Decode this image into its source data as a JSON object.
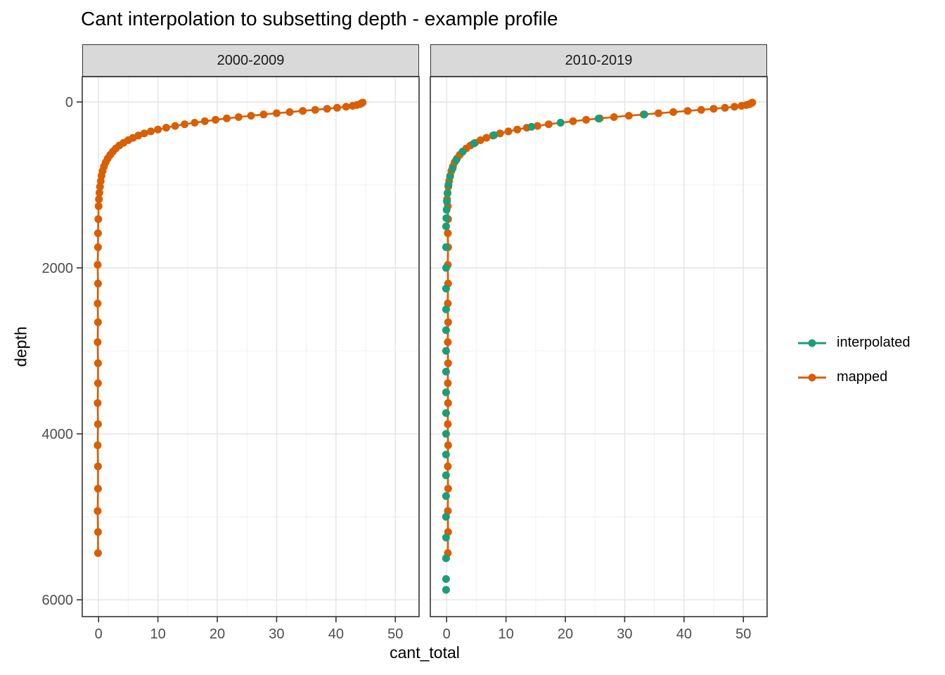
{
  "title": "Cant interpolation to subsetting depth - example profile",
  "axes": {
    "x_label": "cant_total",
    "y_label": "depth",
    "x_ticks": [
      0,
      10,
      20,
      30,
      40,
      50
    ],
    "x_minor_ticks": [
      5,
      15,
      25,
      35,
      45,
      55
    ],
    "y_ticks": [
      0,
      2000,
      4000,
      6000
    ],
    "y_minor_ticks": [
      1000,
      3000,
      5000
    ],
    "x_domain": [
      -2.75,
      54.0
    ],
    "y_domain": [
      -305,
      6203
    ],
    "y_reversed": true
  },
  "facets": [
    {
      "label": "2000-2009"
    },
    {
      "label": "2010-2019"
    }
  ],
  "legend": {
    "items": [
      {
        "label": "interpolated",
        "color": "#1B9E77"
      },
      {
        "label": "mapped",
        "color": "#D95F02"
      }
    ]
  },
  "colors": {
    "mapped": "#D95F02",
    "interpolated": "#1B9E77",
    "strip_fill": "#D9D9D9",
    "panel_border": "#333333",
    "grid_major": "#E4E4E4",
    "grid_minor": "#F1F1F1",
    "tick_label": "#4D4D4D"
  },
  "chart_data": [
    {
      "type": "line",
      "facet": "2000-2009",
      "xlabel": "cant_total",
      "ylabel": "depth",
      "xlim": [
        -2.75,
        54.0
      ],
      "ylim": [
        6203,
        -305
      ],
      "series": [
        {
          "name": "mapped",
          "color": "#D95F02",
          "draw_line": true,
          "x": [
            44.5,
            44.3,
            44.0,
            43.5,
            42.8,
            41.7,
            40.2,
            38.5,
            36.5,
            34.4,
            32.2,
            30.0,
            27.8,
            25.7,
            23.6,
            21.6,
            19.7,
            17.9,
            16.2,
            14.5,
            12.9,
            11.4,
            10.0,
            8.8,
            7.7,
            6.7,
            5.8,
            5.0,
            4.2,
            3.5,
            2.9,
            2.4,
            1.95,
            1.55,
            1.2,
            0.9,
            0.68,
            0.5,
            0.36,
            0.24,
            0.14,
            0.06,
            0.0,
            -0.05,
            -0.1,
            -0.1,
            -0.15,
            -0.1,
            -0.15,
            -0.1,
            -0.15,
            -0.1,
            -0.1,
            -0.15,
            -0.1,
            -0.15,
            -0.1,
            -0.1,
            -0.15,
            -0.1,
            -0.1
          ],
          "y": [
            8,
            17,
            27,
            37,
            47,
            58,
            70,
            82,
            95,
            108,
            122,
            136,
            151,
            166,
            182,
            198,
            215,
            232,
            250,
            269,
            289,
            310,
            332,
            355,
            379,
            405,
            432,
            461,
            492,
            525,
            560,
            598,
            638,
            681,
            728,
            778,
            832,
            890,
            953,
            1021,
            1094,
            1172,
            1256,
            1412,
            1582,
            1751,
            1963,
            2189,
            2429,
            2655,
            2895,
            3149,
            3390,
            3629,
            3883,
            4138,
            4392,
            4661,
            4929,
            5183,
            5437
          ]
        }
      ]
    },
    {
      "type": "line",
      "facet": "2010-2019",
      "xlabel": "cant_total",
      "ylabel": "depth",
      "xlim": [
        -2.75,
        54.0
      ],
      "ylim": [
        6203,
        -305
      ],
      "series": [
        {
          "name": "mapped",
          "color": "#D95F02",
          "draw_line": true,
          "x": [
            51.5,
            51.3,
            51.0,
            50.5,
            49.7,
            48.5,
            46.9,
            45.0,
            42.9,
            40.6,
            38.2,
            35.7,
            33.2,
            30.7,
            28.2,
            25.8,
            23.5,
            21.3,
            19.2,
            17.2,
            15.3,
            13.5,
            11.9,
            10.4,
            9.0,
            7.8,
            6.7,
            5.7,
            4.8,
            4.0,
            3.3,
            2.7,
            2.2,
            1.75,
            1.35,
            1.05,
            0.8,
            0.6,
            0.42,
            0.28,
            0.16,
            0.07,
            0.2,
            0.25,
            0.2,
            0.25,
            0.2,
            0.25,
            0.2,
            0.25,
            0.2,
            0.25,
            0.2,
            0.25,
            0.2,
            0.25,
            0.2,
            0.25,
            0.2,
            0.25,
            0.2
          ],
          "y": [
            8,
            17,
            27,
            37,
            47,
            58,
            70,
            82,
            95,
            108,
            122,
            136,
            151,
            166,
            182,
            198,
            215,
            232,
            250,
            269,
            289,
            310,
            332,
            355,
            379,
            405,
            432,
            461,
            492,
            525,
            560,
            598,
            638,
            681,
            728,
            778,
            832,
            890,
            953,
            1021,
            1094,
            1172,
            1256,
            1412,
            1582,
            1751,
            1963,
            2189,
            2429,
            2655,
            2895,
            3149,
            3390,
            3629,
            3883,
            4138,
            4392,
            4661,
            4929,
            5183,
            5437
          ]
        },
        {
          "name": "interpolated",
          "color": "#1B9E77",
          "draw_line": false,
          "x": [
            33.3,
            25.6,
            19.2,
            14.3,
            8.0,
            4.6,
            2.7,
            1.6,
            1.0,
            0.57,
            0.31,
            0.15,
            0.05,
            0.0,
            -0.05,
            -0.08,
            -0.1,
            -0.1,
            -0.1,
            -0.1,
            -0.1,
            -0.1,
            -0.1,
            -0.1,
            -0.1,
            -0.1,
            -0.1,
            -0.1,
            -0.1,
            -0.1,
            -0.1,
            -0.1,
            -0.1,
            -0.1
          ],
          "y": [
            150,
            200,
            250,
            300,
            400,
            500,
            600,
            700,
            800,
            900,
            1000,
            1100,
            1200,
            1300,
            1400,
            1500,
            1750,
            2000,
            2250,
            2500,
            2750,
            3000,
            3250,
            3500,
            3750,
            4000,
            4250,
            4500,
            4750,
            5000,
            5250,
            5500,
            5750,
            5880
          ]
        }
      ]
    }
  ]
}
